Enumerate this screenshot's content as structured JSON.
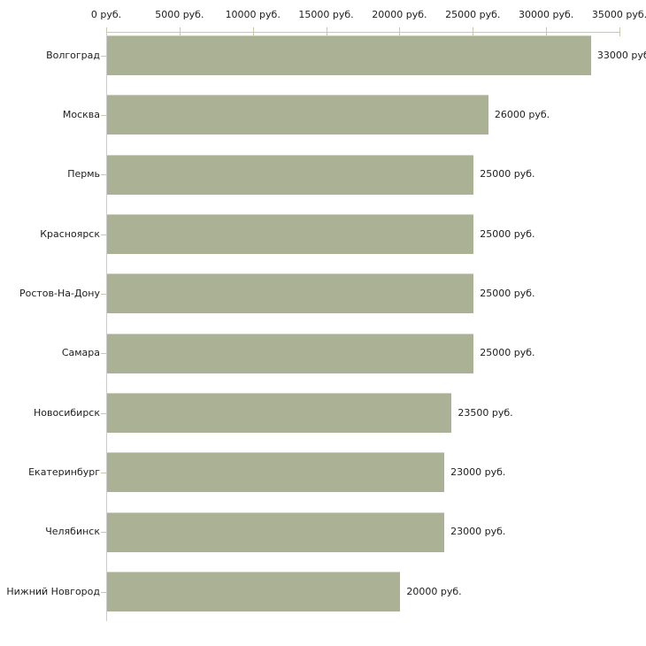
{
  "chart_data": {
    "type": "bar",
    "orientation": "horizontal",
    "title": "",
    "xlabel": "",
    "ylabel": "",
    "categories": [
      "Волгоград",
      "Москва",
      "Пермь",
      "Красноярск",
      "Ростов-На-Дону",
      "Самара",
      "Новосибирск",
      "Екатеринбург",
      "Челябинск",
      "Нижний Новгород"
    ],
    "values": [
      33000,
      26000,
      25000,
      25000,
      25000,
      25000,
      23500,
      23000,
      23000,
      20000
    ],
    "value_labels": [
      "33000 руб",
      "26000 руб.",
      "25000 руб.",
      "25000 руб.",
      "25000 руб.",
      "25000 руб.",
      "23500 руб.",
      "23000 руб.",
      "23000 руб.",
      "20000 руб."
    ],
    "x_ticks": [
      0,
      5000,
      10000,
      15000,
      20000,
      25000,
      30000,
      35000
    ],
    "x_tick_labels": [
      "0 руб.",
      "5000 руб.",
      "10000 руб.",
      "15000 руб.",
      "20000 руб.",
      "25000 руб.",
      "30000 руб.",
      "35000 руб."
    ],
    "xlim": [
      0,
      35000
    ],
    "legend": "none",
    "grid": "off",
    "colors": {
      "bar": "#aab194",
      "axis_line": "#c6c6c0",
      "y_axis_line": "#cccccc",
      "tick": "#c9c9a3",
      "text": "#202020",
      "background": "#ffffff"
    }
  }
}
